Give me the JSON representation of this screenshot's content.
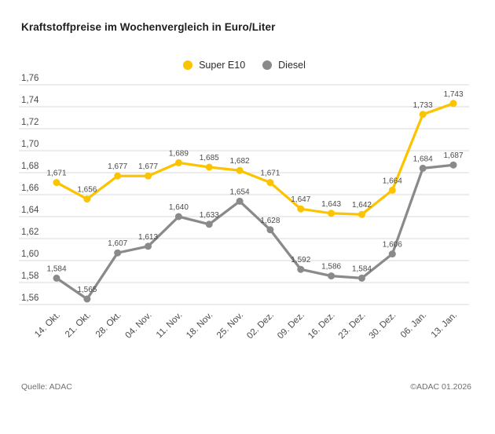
{
  "title": "Kraftstoffpreise im Wochenvergleich in Euro/Liter",
  "footer": {
    "source": "Quelle: ADAC",
    "copyright": "©ADAC 01.2026"
  },
  "colors": {
    "background": "#FFFFFF",
    "grid": "#D9D9D9",
    "axis_text": "#4B4B4B",
    "value_text": "#4B4B4B",
    "title_text": "#1F1F1F",
    "footer_text": "#6F6F6F",
    "super_e10": "#FCC400",
    "diesel": "#8A8A8A"
  },
  "chart_data": {
    "type": "line",
    "title": "Kraftstoffpreise im Wochenvergleich in Euro/Liter",
    "xlabel": "",
    "ylabel": "Euro/Liter",
    "categories": [
      "14. Okt.",
      "21. Okt.",
      "28. Okt.",
      "04. Nov.",
      "11. Nov.",
      "18. Nov.",
      "25. Nov.",
      "02. Dez.",
      "09. Dez.",
      "16. Dez.",
      "23. Dez.",
      "30. Dez.",
      "06. Jan.",
      "13. Jan."
    ],
    "series": [
      {
        "name": "Super E10",
        "color": "#FCC400",
        "values": [
          1.671,
          1.656,
          1.677,
          1.677,
          1.689,
          1.685,
          1.682,
          1.671,
          1.647,
          1.643,
          1.642,
          1.664,
          1.733,
          1.743
        ]
      },
      {
        "name": "Diesel",
        "color": "#8A8A8A",
        "values": [
          1.584,
          1.565,
          1.607,
          1.613,
          1.64,
          1.633,
          1.654,
          1.628,
          1.592,
          1.586,
          1.584,
          1.606,
          1.684,
          1.687
        ]
      }
    ],
    "ylim": [
      1.56,
      1.76
    ],
    "ytick_step": 0.02,
    "ytick_labels": [
      "1,76",
      "1,74",
      "1,72",
      "1,70",
      "1,68",
      "1,66",
      "1,64",
      "1,62",
      "1,60",
      "1,58",
      "1,56"
    ],
    "grid": true,
    "legend_position": "top-center",
    "decimal_separator": ",",
    "value_decimals": 3,
    "axis_decimals": 2,
    "point_labels_visible": true
  }
}
